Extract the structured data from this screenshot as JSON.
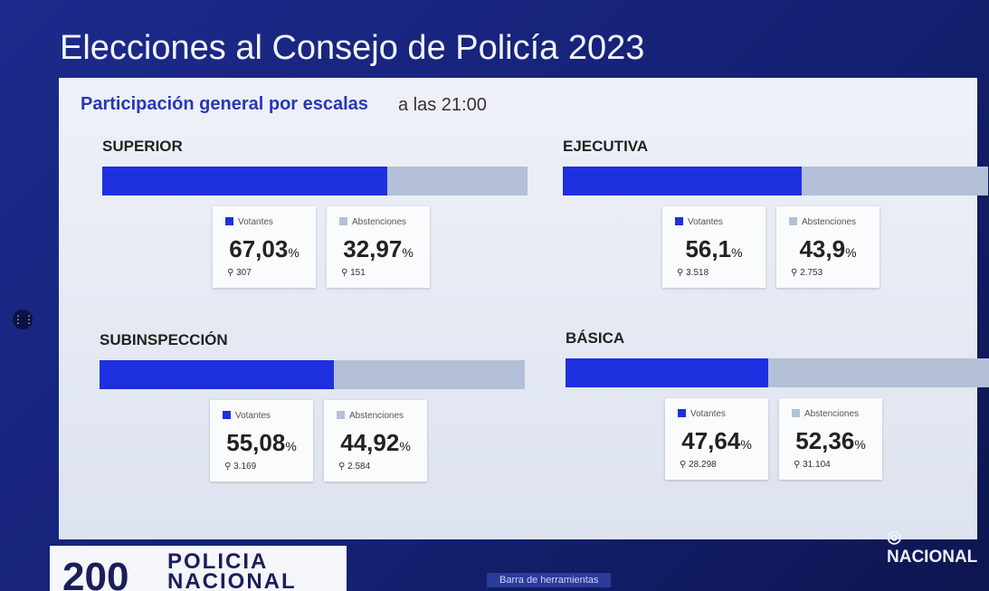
{
  "title": "Elecciones al Consejo de Policía 2023",
  "subtitle": "Participación general por escalas",
  "time": "a las 21:00",
  "percent_sign": "%",
  "legend": {
    "voters": "Votantes",
    "abstentions": "Abstenciones"
  },
  "panels": [
    {
      "name": "SUPERIOR",
      "voters": {
        "percent": {
          "value": 67.03,
          "label": "67,03"
        },
        "count": "307"
      },
      "abstentions": {
        "percent": {
          "value": 32.97,
          "label": "32,97"
        },
        "count": "151"
      }
    },
    {
      "name": "EJECUTIVA",
      "voters": {
        "percent": {
          "value": 56.1,
          "label": "56,1"
        },
        "count": "3.518"
      },
      "abstentions": {
        "percent": {
          "value": 43.9,
          "label": "43,9"
        },
        "count": "2.753"
      }
    },
    {
      "name": "SUBINSPECCIÓN",
      "voters": {
        "percent": {
          "value": 55.08,
          "label": "55,08"
        },
        "count": "3.169"
      },
      "abstentions": {
        "percent": {
          "value": 44.92,
          "label": "44,92"
        },
        "count": "2.584"
      }
    },
    {
      "name": "BÁSICA",
      "voters": {
        "percent": {
          "value": 47.64,
          "label": "47,64"
        },
        "count": "28.298"
      },
      "abstentions": {
        "percent": {
          "value": 52.36,
          "label": "52,36"
        },
        "count": "31.104"
      }
    }
  ],
  "footer": {
    "logo_number": "200",
    "logo_line1": "POLICIA",
    "logo_line2": "NACIONAL",
    "location": "NACIONAL",
    "toolbar": "Barra de herramientas"
  }
}
